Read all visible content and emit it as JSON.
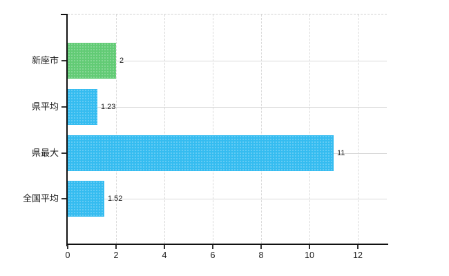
{
  "chart_data": {
    "type": "bar",
    "orientation": "horizontal",
    "title": "",
    "xlabel": "",
    "ylabel": "",
    "categories": [
      "新座市",
      "県平均",
      "県最大",
      "全国平均"
    ],
    "values": [
      2,
      1.23,
      11,
      1.52
    ],
    "value_labels": [
      "2",
      "1.23",
      "11",
      "1.52"
    ],
    "series": [
      {
        "name": "value",
        "values": [
          2,
          1.23,
          11,
          1.52
        ]
      }
    ],
    "bar_colors": [
      "#62cb75",
      "#35bcf0",
      "#35bcf0",
      "#35bcf0"
    ],
    "xlim": [
      0,
      13.26
    ],
    "x_ticks": [
      0,
      2,
      4,
      6,
      8,
      10,
      12
    ],
    "x_tick_labels": [
      "0",
      "2",
      "4",
      "6",
      "8",
      "10",
      "12"
    ],
    "grid": true,
    "legend": "none",
    "colors": {
      "green_bar": "#62cb75",
      "blue_bar": "#35bcf0",
      "gridline": "#d9d9d9",
      "axis": "#111111",
      "text": "#1a1a1a"
    }
  }
}
